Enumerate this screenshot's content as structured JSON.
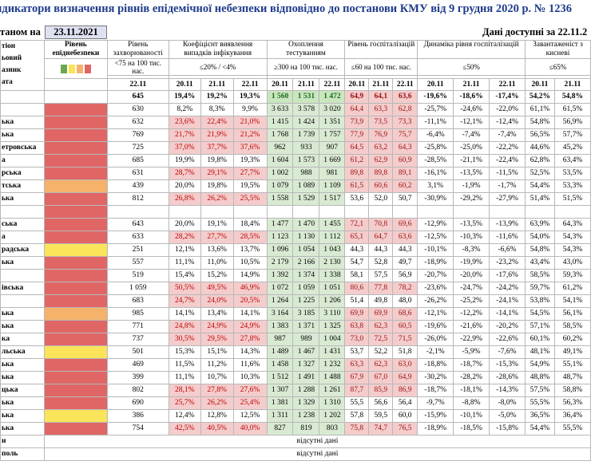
{
  "title": "ндикатори визначення рівнів епідемічної небезпеки відповідно до постанови КМУ від 9 грудня 2020 р. № 1236",
  "status_label": "таном на",
  "status_date": "23.11.2021",
  "available_label": "Дані доступні за 22.11.2",
  "headers": {
    "region_col": [
      "тіон",
      "ьовий",
      "азник",
      "ата"
    ],
    "level": "Рівень епіднебезпеки",
    "incidence": "Рівень захворюваності",
    "incidence_thr": "<75 на 100 тис. нас.",
    "incidence_date": "22.11",
    "coef": "Коефіцієнт виявлення випадків інфікування",
    "coef_thr": "≤20% / <4%",
    "testing": "Охоплення тестуванням",
    "testing_thr": "≥300 на 100 тис. нас.",
    "hosp": "Рівень госпіталізацій",
    "hosp_thr": "≤60 на 100 тис. нас.",
    "dyn": "Динаміка рівня госпіталізацій",
    "dyn_thr": "≤50%",
    "load": "Завантаженіст з кисневі",
    "load_thr": "≤65%",
    "d1": "20.11",
    "d2": "21.11",
    "d3": "22.11"
  },
  "legend_colors": [
    "#6aa84f",
    "#fbe35a",
    "#f6b26b",
    "#e06666"
  ],
  "absent_text": "відсутні дані",
  "absent_rows": [
    "и",
    "поль"
  ],
  "rows": [
    {
      "name": "",
      "level": "",
      "inc": "645",
      "c": [
        "19,4%",
        "19,2%",
        "19,3%"
      ],
      "t": [
        "1 560",
        "1 531",
        "1 472"
      ],
      "h": [
        "64,9",
        "64,1",
        "63,6"
      ],
      "d": [
        "-19,6%",
        "-18,6%",
        "-17,4%"
      ],
      "l": [
        "54,2%",
        "54,8%"
      ],
      "total": true
    },
    {
      "name": "",
      "level": "red",
      "inc": "630",
      "c": [
        "8,2%",
        "8,3%",
        "9,9%"
      ],
      "t": [
        "3 633",
        "3 578",
        "3 020"
      ],
      "h": [
        "64,4",
        "63,3",
        "62,8"
      ],
      "d": [
        "-25,7%",
        "-24,6%",
        "-22,0%"
      ],
      "l": [
        "61,1%",
        "61,5%"
      ]
    },
    {
      "name": "ька",
      "level": "red",
      "inc": "632",
      "c": [
        "23,6%",
        "22,4%",
        "21,0%"
      ],
      "t": [
        "1 415",
        "1 424",
        "1 351"
      ],
      "h": [
        "73,9",
        "73,5",
        "73,3"
      ],
      "d": [
        "-11,1%",
        "-12,1%",
        "-12,4%"
      ],
      "l": [
        "54,8%",
        "56,9%"
      ]
    },
    {
      "name": "ька",
      "level": "red",
      "inc": "769",
      "c": [
        "21,7%",
        "21,9%",
        "21,2%"
      ],
      "t": [
        "1 768",
        "1 739",
        "1 757"
      ],
      "h": [
        "77,9",
        "76,9",
        "75,7"
      ],
      "d": [
        "-6,4%",
        "-7,4%",
        "-7,4%"
      ],
      "l": [
        "56,5%",
        "57,7%"
      ]
    },
    {
      "name": "етровська",
      "level": "red",
      "inc": "725",
      "c": [
        "37,0%",
        "37,7%",
        "37,6%"
      ],
      "t": [
        "962",
        "933",
        "907"
      ],
      "h": [
        "64,5",
        "63,2",
        "64,3"
      ],
      "d": [
        "-25,8%",
        "-25,0%",
        "-22,2%"
      ],
      "l": [
        "44,6%",
        "45,2%"
      ]
    },
    {
      "name": "а",
      "level": "red",
      "inc": "685",
      "c": [
        "19,9%",
        "19,8%",
        "19,3%"
      ],
      "t": [
        "1 604",
        "1 573",
        "1 669"
      ],
      "h": [
        "61,2",
        "62,9",
        "60,9"
      ],
      "d": [
        "-28,5%",
        "-21,1%",
        "-22,4%"
      ],
      "l": [
        "62,8%",
        "63,4%"
      ]
    },
    {
      "name": "рська",
      "level": "red",
      "inc": "631",
      "c": [
        "28,7%",
        "29,1%",
        "27,7%"
      ],
      "t": [
        "1 002",
        "988",
        "981"
      ],
      "h": [
        "89,8",
        "89,8",
        "89,1"
      ],
      "d": [
        "-16,1%",
        "-13,5%",
        "-11,5%"
      ],
      "l": [
        "52,5%",
        "53,5%"
      ]
    },
    {
      "name": "тська",
      "level": "orange",
      "inc": "439",
      "c": [
        "20,0%",
        "19,8%",
        "19,5%"
      ],
      "t": [
        "1 079",
        "1 089",
        "1 109"
      ],
      "h": [
        "61,5",
        "60,6",
        "60,2"
      ],
      "d": [
        "3,1%",
        "-1,9%",
        "-1,7%"
      ],
      "l": [
        "54,4%",
        "53,3%"
      ]
    },
    {
      "name": "ька",
      "level": "red",
      "inc": "812",
      "c": [
        "26,8%",
        "26,2%",
        "25,5%"
      ],
      "t": [
        "1 558",
        "1 529",
        "1 517"
      ],
      "h": [
        "53,6",
        "52,0",
        "50,7"
      ],
      "d": [
        "-30,9%",
        "-29,2%",
        "-27,9%"
      ],
      "l": [
        "51,4%",
        "51,5%"
      ]
    },
    {
      "name": "",
      "level": "red",
      "inc": "",
      "c": [
        "",
        "",
        ""
      ],
      "t": [
        "",
        "",
        ""
      ],
      "h": [
        "",
        "",
        ""
      ],
      "d": [
        "",
        "",
        ""
      ],
      "l": [
        "",
        ""
      ],
      "blank": true
    },
    {
      "name": "ська",
      "level": "red",
      "inc": "643",
      "c": [
        "20,0%",
        "19,1%",
        "18,4%"
      ],
      "t": [
        "1 477",
        "1 470",
        "1 455"
      ],
      "h": [
        "72,1",
        "70,8",
        "69,6"
      ],
      "d": [
        "-12,9%",
        "-13,5%",
        "-13,9%"
      ],
      "l": [
        "63,9%",
        "64,3%"
      ]
    },
    {
      "name": "а",
      "level": "red",
      "inc": "633",
      "c": [
        "28,2%",
        "27,7%",
        "28,5%"
      ],
      "t": [
        "1 123",
        "1 130",
        "1 112"
      ],
      "h": [
        "65,1",
        "64,7",
        "63,6"
      ],
      "d": [
        "-12,5%",
        "-10,3%",
        "-11,6%"
      ],
      "l": [
        "54,0%",
        "54,3%"
      ]
    },
    {
      "name": "радська",
      "level": "yellow",
      "inc": "251",
      "c": [
        "12,1%",
        "13,6%",
        "13,7%"
      ],
      "t": [
        "1 096",
        "1 054",
        "1 043"
      ],
      "h": [
        "44,3",
        "44,3",
        "44,3"
      ],
      "d": [
        "-10,1%",
        "-8,3%",
        "-6,6%"
      ],
      "l": [
        "54,8%",
        "54,3%"
      ]
    },
    {
      "name": "ька",
      "level": "red",
      "inc": "557",
      "c": [
        "11,1%",
        "11,0%",
        "10,5%"
      ],
      "t": [
        "2 179",
        "2 166",
        "2 130"
      ],
      "h": [
        "54,7",
        "52,8",
        "49,7"
      ],
      "d": [
        "-18,9%",
        "-19,9%",
        "-23,2%"
      ],
      "l": [
        "43,4%",
        "43,0%"
      ]
    },
    {
      "name": "",
      "level": "red",
      "inc": "519",
      "c": [
        "15,4%",
        "15,2%",
        "14,9%"
      ],
      "t": [
        "1 392",
        "1 374",
        "1 338"
      ],
      "h": [
        "58,1",
        "57,5",
        "56,9"
      ],
      "d": [
        "-20,7%",
        "-20,0%",
        "-17,6%"
      ],
      "l": [
        "58,5%",
        "59,3%"
      ]
    },
    {
      "name": "івська",
      "level": "red",
      "inc": "1 059",
      "c": [
        "50,5%",
        "49,5%",
        "46,9%"
      ],
      "t": [
        "1 072",
        "1 059",
        "1 051"
      ],
      "h": [
        "80,6",
        "77,8",
        "78,2"
      ],
      "d": [
        "-23,6%",
        "-24,7%",
        "-24,2%"
      ],
      "l": [
        "59,7%",
        "61,2%"
      ]
    },
    {
      "name": "",
      "level": "red",
      "inc": "683",
      "c": [
        "24,7%",
        "24,0%",
        "20,5%"
      ],
      "t": [
        "1 264",
        "1 225",
        "1 206"
      ],
      "h": [
        "51,4",
        "49,8",
        "48,0"
      ],
      "d": [
        "-26,2%",
        "-25,2%",
        "-24,1%"
      ],
      "l": [
        "53,8%",
        "54,1%"
      ]
    },
    {
      "name": "ька",
      "level": "orange",
      "inc": "985",
      "c": [
        "14,1%",
        "13,4%",
        "14,1%"
      ],
      "t": [
        "3 164",
        "3 185",
        "3 110"
      ],
      "h": [
        "69,9",
        "69,9",
        "68,6"
      ],
      "d": [
        "-12,1%",
        "-12,2%",
        "-14,1%"
      ],
      "l": [
        "54,5%",
        "56,1%"
      ]
    },
    {
      "name": "ька",
      "level": "red",
      "inc": "771",
      "c": [
        "24,8%",
        "24,9%",
        "24,9%"
      ],
      "t": [
        "1 383",
        "1 371",
        "1 325"
      ],
      "h": [
        "63,8",
        "62,3",
        "60,5"
      ],
      "d": [
        "-19,6%",
        "-21,6%",
        "-20,2%"
      ],
      "l": [
        "57,1%",
        "58,5%"
      ]
    },
    {
      "name": "ка",
      "level": "red",
      "inc": "737",
      "c": [
        "30,5%",
        "29,5%",
        "27,8%"
      ],
      "t": [
        "987",
        "989",
        "1 004"
      ],
      "h": [
        "73,0",
        "72,5",
        "71,5"
      ],
      "d": [
        "-26,0%",
        "-22,9%",
        "-22,6%"
      ],
      "l": [
        "60,1%",
        "60,2%"
      ]
    },
    {
      "name": "льська",
      "level": "yellow",
      "inc": "501",
      "c": [
        "15,3%",
        "15,1%",
        "14,3%"
      ],
      "t": [
        "1 489",
        "1 467",
        "1 431"
      ],
      "h": [
        "53,7",
        "52,2",
        "51,8"
      ],
      "d": [
        "-2,1%",
        "-5,9%",
        "-7,6%"
      ],
      "l": [
        "48,1%",
        "49,1%"
      ]
    },
    {
      "name": "ька",
      "level": "red",
      "inc": "469",
      "c": [
        "11,5%",
        "11,2%",
        "11,6%"
      ],
      "t": [
        "1 458",
        "1 327",
        "1 232"
      ],
      "h": [
        "63,3",
        "62,3",
        "63,0"
      ],
      "d": [
        "-18,8%",
        "-18,7%",
        "-15,3%"
      ],
      "l": [
        "54,9%",
        "55,1%"
      ]
    },
    {
      "name": "ька",
      "level": "red",
      "inc": "399",
      "c": [
        "11,1%",
        "10,7%",
        "10,3%"
      ],
      "t": [
        "1 512",
        "1 491",
        "1 488"
      ],
      "h": [
        "67,9",
        "67,0",
        "64,9"
      ],
      "d": [
        "-30,2%",
        "-28,2%",
        "-28,6%"
      ],
      "l": [
        "48,8%",
        "48,7%"
      ]
    },
    {
      "name": "цька",
      "level": "red",
      "inc": "802",
      "c": [
        "28,1%",
        "27,8%",
        "27,6%"
      ],
      "t": [
        "1 307",
        "1 288",
        "1 261"
      ],
      "h": [
        "87,7",
        "85,9",
        "86,9"
      ],
      "d": [
        "-18,7%",
        "-18,1%",
        "-14,3%"
      ],
      "l": [
        "57,5%",
        "58,8%"
      ]
    },
    {
      "name": "ька",
      "level": "red",
      "inc": "690",
      "c": [
        "25,7%",
        "26,2%",
        "25,4%"
      ],
      "t": [
        "1 381",
        "1 329",
        "1 310"
      ],
      "h": [
        "55,5",
        "56,6",
        "56,4"
      ],
      "d": [
        "-9,7%",
        "-8,8%",
        "-8,0%"
      ],
      "l": [
        "55,5%",
        "56,3%"
      ]
    },
    {
      "name": "ька",
      "level": "yellow",
      "inc": "386",
      "c": [
        "12,4%",
        "12,8%",
        "12,5%"
      ],
      "t": [
        "1 311",
        "1 238",
        "1 202"
      ],
      "h": [
        "57,8",
        "59,5",
        "60,0"
      ],
      "d": [
        "-15,9%",
        "-10,1%",
        "-5,0%"
      ],
      "l": [
        "36,5%",
        "36,4%"
      ]
    },
    {
      "name": "ька",
      "level": "red",
      "inc": "754",
      "c": [
        "42,5%",
        "40,5%",
        "40,0%"
      ],
      "t": [
        "827",
        "819",
        "803"
      ],
      "h": [
        "75,8",
        "74,7",
        "76,5"
      ],
      "d": [
        "-18,9%",
        "-18,5%",
        "-15,8%"
      ],
      "l": [
        "54,4%",
        "55,5%"
      ]
    }
  ]
}
